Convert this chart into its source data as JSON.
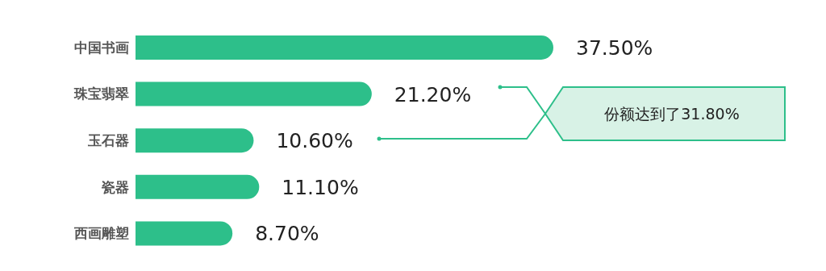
{
  "chart_data": {
    "type": "bar",
    "orientation": "horizontal",
    "categories": [
      "中国书画",
      "珠宝翡翠",
      "玉石器",
      "瓷器",
      "西画雕塑"
    ],
    "values": [
      37.5,
      21.2,
      10.6,
      11.1,
      8.7
    ],
    "value_labels": [
      "37.50%",
      "21.20%",
      "10.60%",
      "11.10%",
      "8.70%"
    ],
    "color": "#2dbf8a",
    "annotations": [
      "份额达到了31.80%"
    ]
  }
}
